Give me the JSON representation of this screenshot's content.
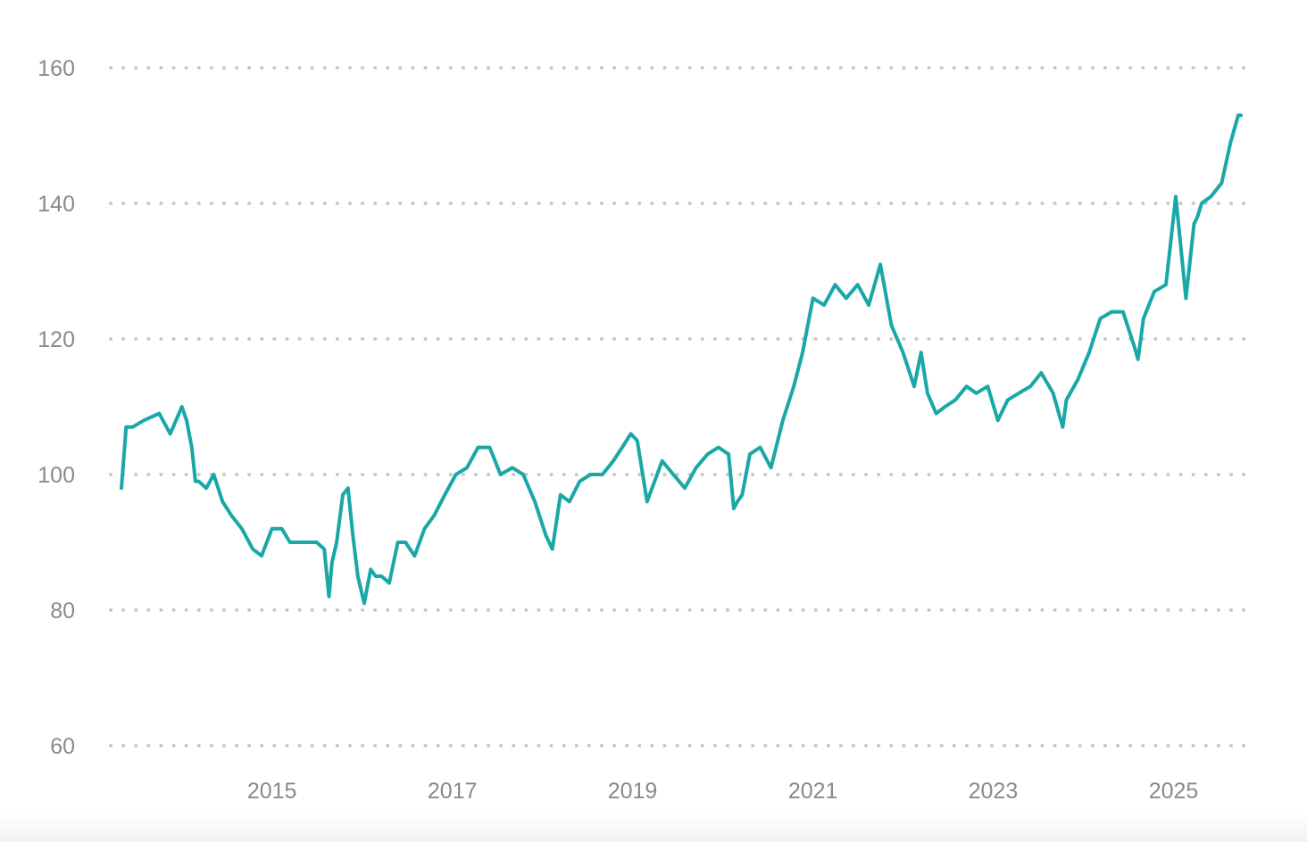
{
  "chart_data": {
    "type": "line",
    "title": "",
    "xlabel": "",
    "ylabel": "",
    "ylim": [
      60,
      160
    ],
    "xlim": [
      "2013-05-01",
      "2025-10-01"
    ],
    "grid": true,
    "legend": "none",
    "y_ticks": [
      60,
      80,
      100,
      120,
      140,
      160
    ],
    "x_ticks": [
      "2015",
      "2017",
      "2019",
      "2021",
      "2023",
      "2025"
    ],
    "line_color": "#1aa7a7",
    "grid_color": "#c9c9c9",
    "series": [
      {
        "x": [
          "2013-05-01",
          "2013-05-20",
          "2013-06-15",
          "2013-08-01",
          "2013-10-01",
          "2013-11-15",
          "2014-01-01",
          "2014-01-20",
          "2014-02-10",
          "2014-02-25",
          "2014-03-10",
          "2014-04-10",
          "2014-05-10",
          "2014-06-15",
          "2014-07-20",
          "2014-09-01",
          "2014-10-15",
          "2014-11-20",
          "2015-01-01",
          "2015-02-10",
          "2015-03-15",
          "2015-04-15",
          "2015-05-20",
          "2015-07-01",
          "2015-08-01",
          "2015-08-20",
          "2015-09-01",
          "2015-09-20",
          "2015-10-15",
          "2015-11-05",
          "2015-11-25",
          "2015-12-15",
          "2016-01-10",
          "2016-02-05",
          "2016-02-25",
          "2016-03-20",
          "2016-04-20",
          "2016-05-25",
          "2016-06-25",
          "2016-08-01",
          "2016-09-10",
          "2016-10-20",
          "2016-12-01",
          "2017-01-15",
          "2017-03-01",
          "2017-04-15",
          "2017-06-01",
          "2017-07-15",
          "2017-09-01",
          "2017-10-15",
          "2017-12-01",
          "2018-01-15",
          "2018-02-10",
          "2018-03-15",
          "2018-04-20",
          "2018-06-01",
          "2018-07-15",
          "2018-09-01",
          "2018-10-15",
          "2018-11-20",
          "2018-12-25",
          "2019-01-20",
          "2019-03-01",
          "2019-05-01",
          "2019-06-15",
          "2019-08-01",
          "2019-09-15",
          "2019-11-01",
          "2019-12-15",
          "2020-01-25",
          "2020-02-15",
          "2020-03-01",
          "2020-03-20",
          "2020-04-20",
          "2020-06-01",
          "2020-07-15",
          "2020-09-01",
          "2020-10-15",
          "2020-11-20",
          "2021-01-01",
          "2021-02-15",
          "2021-04-01",
          "2021-05-15",
          "2021-07-01",
          "2021-08-15",
          "2021-10-01",
          "2021-11-15",
          "2022-01-01",
          "2022-02-15",
          "2022-03-15",
          "2022-04-10",
          "2022-05-15",
          "2022-06-20",
          "2022-08-01",
          "2022-09-15",
          "2022-10-25",
          "2022-12-10",
          "2023-01-20",
          "2023-03-01",
          "2023-04-15",
          "2023-06-01",
          "2023-07-15",
          "2023-09-01",
          "2023-10-10",
          "2023-10-25",
          "2023-12-10",
          "2024-01-25",
          "2024-03-10",
          "2024-04-25",
          "2024-06-10",
          "2024-07-25",
          "2024-08-10",
          "2024-09-01",
          "2024-10-15",
          "2024-12-01",
          "2025-01-10",
          "2025-02-20",
          "2025-03-25",
          "2025-04-08",
          "2025-04-25",
          "2025-06-01",
          "2025-07-15",
          "2025-08-20",
          "2025-09-20",
          "2025-10-01"
        ],
        "y": [
          98,
          107,
          107,
          108,
          109,
          106,
          110,
          108,
          104,
          99,
          99,
          98,
          100,
          96,
          94,
          92,
          89,
          88,
          92,
          92,
          90,
          90,
          90,
          90,
          89,
          82,
          87,
          90,
          97,
          98,
          91,
          85,
          81,
          86,
          85,
          85,
          84,
          90,
          90,
          88,
          92,
          94,
          97,
          100,
          101,
          104,
          104,
          100,
          101,
          100,
          96,
          91,
          89,
          97,
          96,
          99,
          100,
          100,
          102,
          104,
          106,
          105,
          96,
          102,
          100,
          98,
          101,
          103,
          104,
          103,
          95,
          96,
          97,
          103,
          104,
          101,
          108,
          113,
          118,
          126,
          125,
          128,
          126,
          128,
          125,
          131,
          122,
          118,
          113,
          118,
          112,
          109,
          110,
          111,
          113,
          112,
          113,
          108,
          111,
          112,
          113,
          115,
          112,
          107,
          111,
          114,
          118,
          123,
          124,
          124,
          119,
          117,
          123,
          127,
          128,
          141,
          126,
          137,
          138,
          140,
          141,
          143,
          149,
          153,
          153
        ]
      }
    ]
  }
}
